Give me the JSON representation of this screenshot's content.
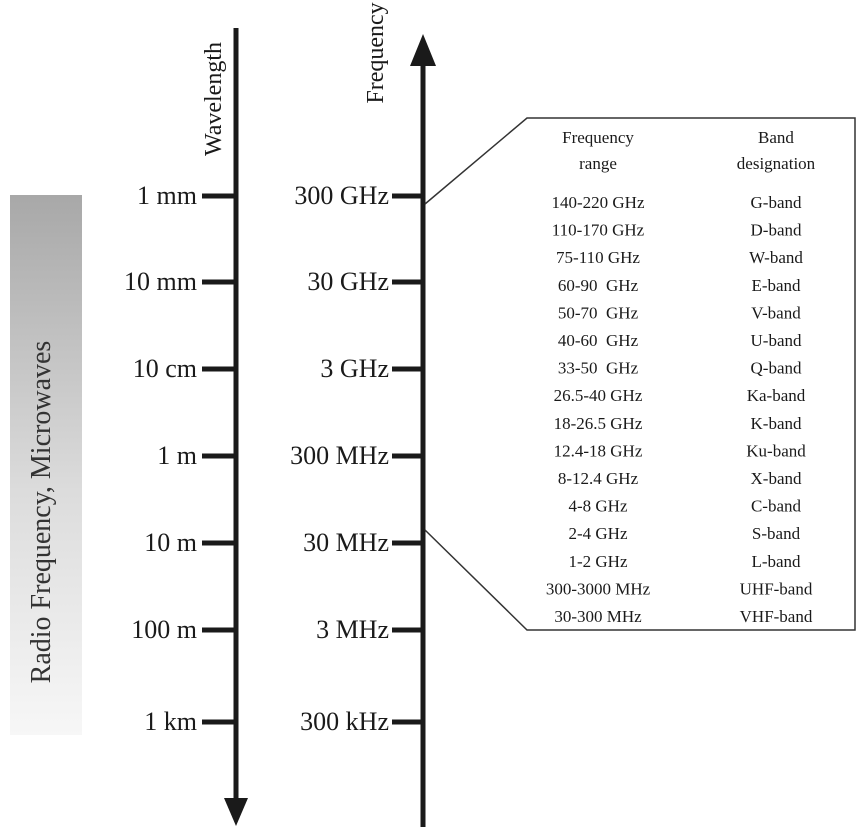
{
  "band_label": "Radio Frequency, Microwaves",
  "wavelength_axis": {
    "title": "Wavelength",
    "ticks": [
      "1 mm",
      "10 mm",
      "10 cm",
      "1 m",
      "10 m",
      "100 m",
      "1 km"
    ]
  },
  "frequency_axis": {
    "title": "Frequency",
    "ticks": [
      "300 GHz",
      "30 GHz",
      "3 GHz",
      "300 MHz",
      "30 MHz",
      "3 MHz",
      "300 kHz"
    ]
  },
  "band_table": {
    "header_range_line1": "Frequency",
    "header_range_line2": "range",
    "header_band_line1": "Band",
    "header_band_line2": "designation",
    "rows": [
      {
        "range": "140-220 GHz",
        "band": "G-band"
      },
      {
        "range": "110-170 GHz",
        "band": "D-band"
      },
      {
        "range": "75-110 GHz",
        "band": "W-band"
      },
      {
        "range": "60-90  GHz",
        "band": "E-band"
      },
      {
        "range": "50-70  GHz",
        "band": "V-band"
      },
      {
        "range": "40-60  GHz",
        "band": "U-band"
      },
      {
        "range": "33-50  GHz",
        "band": "Q-band"
      },
      {
        "range": "26.5-40 GHz",
        "band": "Ka-band"
      },
      {
        "range": "18-26.5 GHz",
        "band": "K-band"
      },
      {
        "range": "12.4-18 GHz",
        "band": "Ku-band"
      },
      {
        "range": "8-12.4 GHz",
        "band": "X-band"
      },
      {
        "range": "4-8 GHz",
        "band": "C-band"
      },
      {
        "range": "2-4 GHz",
        "band": "S-band"
      },
      {
        "range": "1-2 GHz",
        "band": "L-band"
      },
      {
        "range": "300-3000 MHz",
        "band": "UHF-band"
      },
      {
        "range": "30-300 MHz",
        "band": "VHF-band"
      }
    ]
  }
}
